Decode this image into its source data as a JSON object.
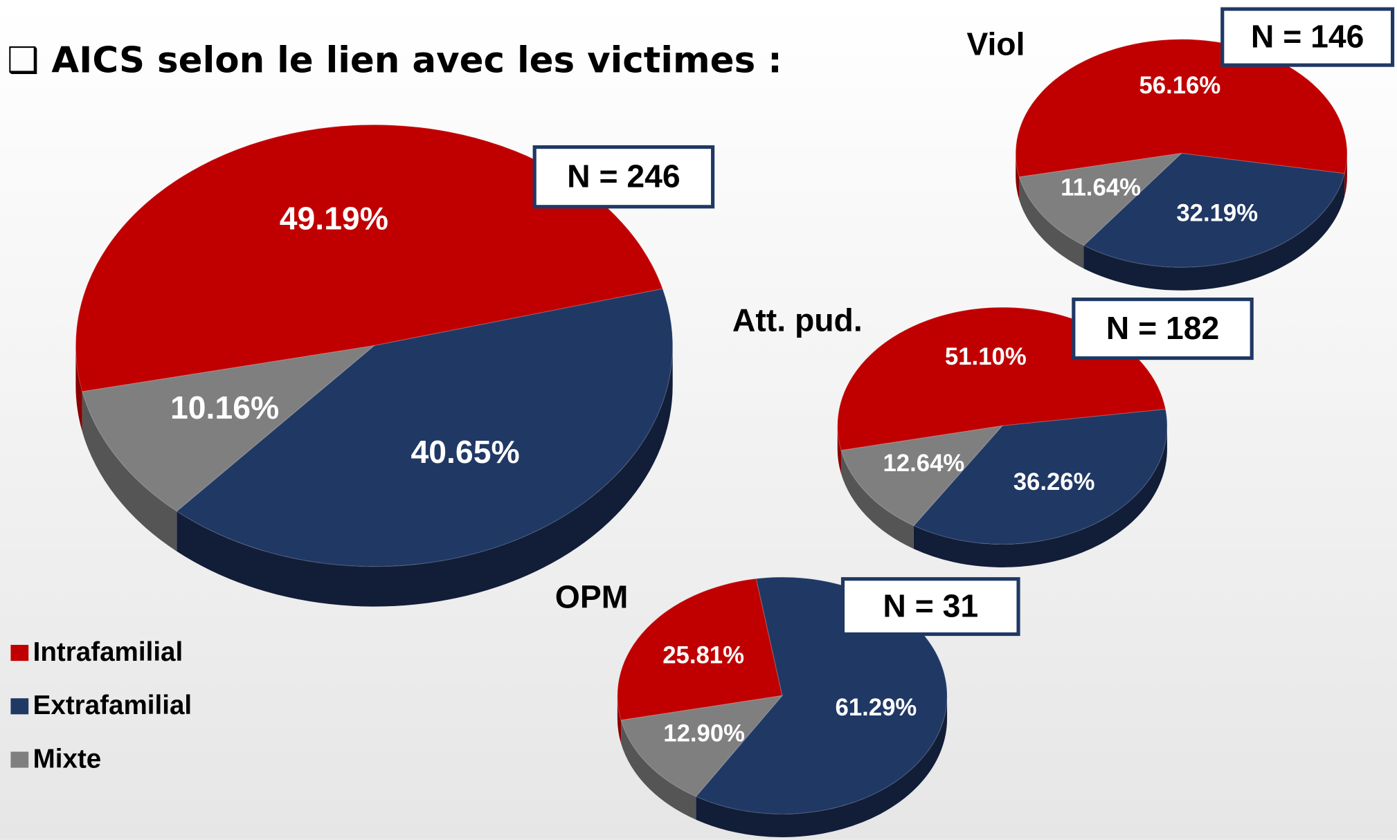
{
  "header": {
    "title": "❑ AICS selon le lien avec les victimes :"
  },
  "legend": {
    "labels": [
      "Intrafamilial",
      "Extrafamilial",
      "Mixte"
    ],
    "colors": [
      "#c00000",
      "#203864",
      "#7f7f7f"
    ]
  },
  "chart_data": [
    {
      "type": "pie",
      "annotation": "N = 246",
      "values": [
        49.19,
        40.65,
        10.16
      ],
      "value_labels": [
        "49.19%",
        "40.65%",
        "10.16%"
      ]
    },
    {
      "type": "pie",
      "title": "Viol",
      "annotation": "N = 146",
      "values": [
        56.16,
        32.19,
        11.64
      ],
      "value_labels": [
        "56.16%",
        "32.19%",
        "11.64%"
      ]
    },
    {
      "type": "pie",
      "title": "Att. pud.",
      "annotation": "N = 182",
      "values": [
        51.1,
        36.26,
        12.64
      ],
      "value_labels": [
        "51.10%",
        "36.26%",
        "12.64%"
      ]
    },
    {
      "type": "pie",
      "title": "OPM",
      "annotation": "N = 31",
      "values": [
        25.81,
        61.29,
        12.9
      ],
      "value_labels": [
        "25.81%",
        "61.29%",
        "12.90%"
      ]
    }
  ]
}
